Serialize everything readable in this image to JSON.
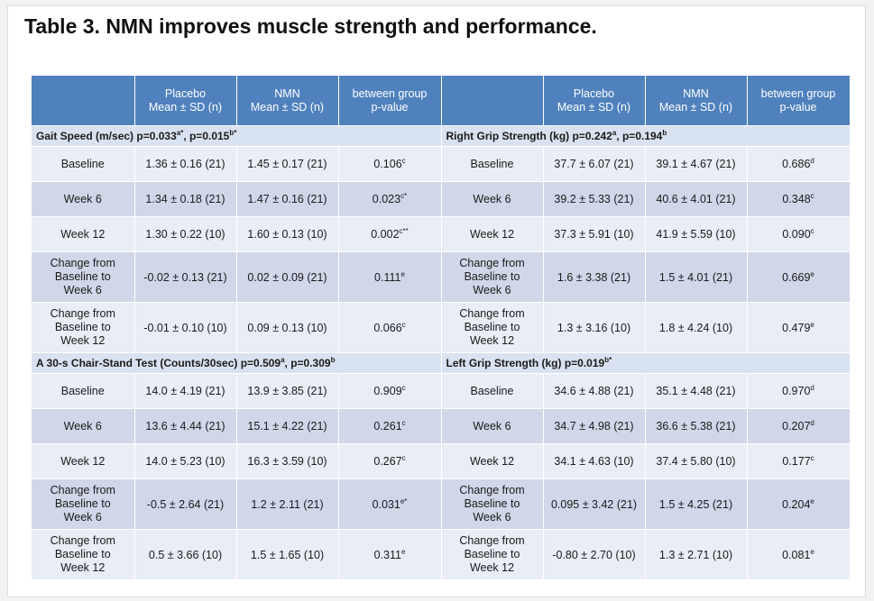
{
  "title": "Table 3. NMN improves muscle strength and performance.",
  "header": {
    "placebo": "Placebo",
    "nmn": "NMN",
    "mean_sd": "Mean ± SD (n)",
    "between_group": "between group",
    "p_value": "p-value"
  },
  "sections": {
    "gait": {
      "title": "Gait Speed (m/sec)  p=0.033",
      "sup1": "a*",
      "title_mid": ", p=0.015",
      "sup2": "b*",
      "rows": [
        {
          "label": "Baseline",
          "placebo": "1.36 ± 0.16 (21)",
          "nmn": "1.45 ± 0.17 (21)",
          "p": "0.106",
          "sup": "c"
        },
        {
          "label": "Week 6",
          "placebo": "1.34 ± 0.18 (21)",
          "nmn": "1.47 ± 0.16 (21)",
          "p": "0.023",
          "sup": "c*"
        },
        {
          "label": "Week 12",
          "placebo": "1.30 ± 0.22 (10)",
          "nmn": "1.60 ± 0.13 (10)",
          "p": "0.002",
          "sup": "c**"
        },
        {
          "label_1": "Change from",
          "label_2": "Baseline to",
          "label_3": "Week 6",
          "placebo": "-0.02 ± 0.13 (21)",
          "nmn": "0.02 ± 0.09 (21)",
          "p": "0.111",
          "sup": "e"
        },
        {
          "label_1": "Change from",
          "label_2": "Baseline to",
          "label_3": "Week 12",
          "placebo": "-0.01 ± 0.10 (10)",
          "nmn": "0.09 ± 0.13 (10)",
          "p": "0.066",
          "sup": "c"
        }
      ]
    },
    "right_grip": {
      "title": "Right Grip Strength (kg) p=0.242",
      "sup1": "a",
      "title_mid": ", p=0.194",
      "sup2": "b",
      "rows": [
        {
          "label": "Baseline",
          "placebo": "37.7 ± 6.07 (21)",
          "nmn": "39.1 ± 4.67 (21)",
          "p": "0.686",
          "sup": "d"
        },
        {
          "label": "Week 6",
          "placebo": "39.2 ± 5.33 (21)",
          "nmn": "40.6  ± 4.01 (21)",
          "p": "0.348",
          "sup": "c"
        },
        {
          "label": "Week 12",
          "placebo": "37.3 ± 5.91 (10)",
          "nmn": "41.9 ± 5.59 (10)",
          "p": "0.090",
          "sup": "c"
        },
        {
          "label_1": "Change from",
          "label_2": "Baseline to",
          "label_3": "Week 6",
          "placebo": "1.6 ± 3.38 (21)",
          "nmn": "1.5 ± 4.01 (21)",
          "p": "0.669",
          "sup": "e"
        },
        {
          "label_1": "Change from",
          "label_2": "Baseline to",
          "label_3": "Week 12",
          "placebo": "1.3 ± 3.16 (10)",
          "nmn": "1.8 ± 4.24 (10)",
          "p": "0.479",
          "sup": "e"
        }
      ]
    },
    "chair": {
      "title": "A 30-s Chair-Stand Test (Counts/30sec)  p=0.509",
      "sup1": "a",
      "title_mid": ", p=0.309",
      "sup2": "b",
      "rows": [
        {
          "label": "Baseline",
          "placebo": "14.0 ± 4.19 (21)",
          "nmn": "13.9 ± 3.85 (21)",
          "p": "0.909",
          "sup": "c"
        },
        {
          "label": "Week 6",
          "placebo": "13.6 ± 4.44 (21)",
          "nmn": "15.1 ± 4.22 (21)",
          "p": "0.261",
          "sup": "c"
        },
        {
          "label": "Week 12",
          "placebo": "14.0 ± 5.23 (10)",
          "nmn": "16.3 ± 3.59 (10)",
          "p": "0.267",
          "sup": "c"
        },
        {
          "label_1": "Change from",
          "label_2": "Baseline to",
          "label_3": "Week 6",
          "placebo": "-0.5 ± 2.64 (21)",
          "nmn": "1.2 ± 2.11 (21)",
          "p": "0.031",
          "sup": "e*"
        },
        {
          "label_1": "Change from",
          "label_2": "Baseline to",
          "label_3": "Week 12",
          "placebo": "0.5 ± 3.66 (10)",
          "nmn": "1.5 ± 1.65 (10)",
          "p": "0.311",
          "sup": "e"
        }
      ]
    },
    "left_grip": {
      "title": "Left Grip Strength (kg) p=0.019",
      "sup1": "b*",
      "rows": [
        {
          "label": "Baseline",
          "placebo": "34.6 ± 4.88 (21)",
          "nmn": "35.1 ± 4.48 (21)",
          "p": "0.970",
          "sup": "d"
        },
        {
          "label": "Week 6",
          "placebo": "34.7 ± 4.98 (21)",
          "nmn": "36.6 ± 5.38 (21)",
          "p": "0.207",
          "sup": "d"
        },
        {
          "label": "Week 12",
          "placebo": "34.1 ± 4.63 (10)",
          "nmn": "37.4 ± 5.80 (10)",
          "p": "0.177",
          "sup": "c"
        },
        {
          "label_1": "Change from",
          "label_2": "Baseline to",
          "label_3": "Week 6",
          "placebo": "0.095 ± 3.42 (21)",
          "nmn": "1.5 ± 4.25 (21)",
          "p": "0.204",
          "sup": "e"
        },
        {
          "label_1": "Change from",
          "label_2": "Baseline to",
          "label_3": "Week 12",
          "placebo": "-0.80 ± 2.70 (10)",
          "nmn": "1.3 ± 2.71 (10)",
          "p": "0.081",
          "sup": "e"
        }
      ]
    }
  }
}
